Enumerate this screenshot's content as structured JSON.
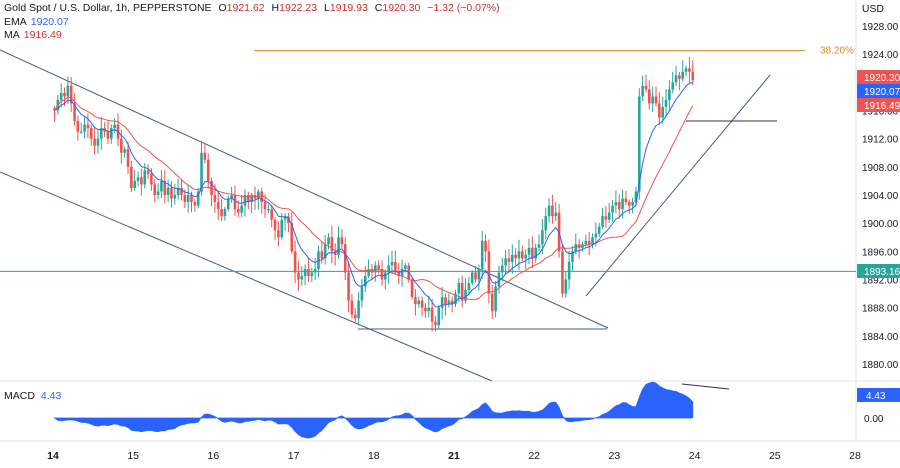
{
  "header": {
    "symbol": "Gold Spot / U.S. Dollar, 1h, PEPPERSTONE",
    "open_label": "O",
    "open": "1921.62",
    "high_label": "H",
    "high": "1922.23",
    "low_label": "L",
    "low": "1919.93",
    "close_label": "C",
    "close": "1920.30",
    "change": "−1.32 (−0.07%)",
    "ema_label": "EMA",
    "ema_value": "1920.07",
    "ma_label": "MA",
    "ma_value": "1916.49",
    "unit": "USD"
  },
  "macd": {
    "label": "MACD",
    "value": "4.43",
    "axis_badge": "4.43",
    "zero_label": "0.00"
  },
  "price_badges": [
    {
      "text": "1920.30",
      "color": "#ef5350"
    },
    {
      "text": "1920.07",
      "color": "#2962ff"
    },
    {
      "text": "1916.49",
      "color": "#ef5350"
    },
    {
      "text": "1893.16",
      "color": "#26a69a"
    }
  ],
  "fib_label": "38.20%",
  "colors": {
    "up": "#26a69a",
    "down": "#ef5350",
    "ema": "#2962ff",
    "ma": "#ef5350",
    "channel": "#4a5a8a",
    "fib": "#d58b2b",
    "macd": "#2962ff"
  },
  "chart_data": {
    "type": "candlestick",
    "y_ticks": [
      "1928.00",
      "1924.00",
      "1920.00",
      "1916.00",
      "1912.00",
      "1908.00",
      "1904.00",
      "1900.00",
      "1896.00",
      "1892.00",
      "1888.00",
      "1884.00",
      "1880.00"
    ],
    "ylim": [
      1878.5,
      1930.5
    ],
    "x_ticks": [
      {
        "label": "14",
        "x": 0
      },
      {
        "label": "15",
        "x": 1
      },
      {
        "label": "16",
        "x": 2
      },
      {
        "label": "17",
        "x": 3
      },
      {
        "label": "18",
        "x": 4
      },
      {
        "label": "21",
        "x": 5
      },
      {
        "label": "22",
        "x": 6
      },
      {
        "label": "23",
        "x": 7
      },
      {
        "label": "24",
        "x": 8
      },
      {
        "label": "25",
        "x": 9
      },
      {
        "label": "28",
        "x": 10
      }
    ],
    "x_bold": [
      "14",
      "21"
    ],
    "candles_per_day": 24,
    "close_path": [
      [
        0,
        1916
      ],
      [
        1,
        1917.5
      ],
      [
        2,
        1918.5
      ],
      [
        3,
        1918
      ],
      [
        4,
        1919.5
      ],
      [
        5,
        1917
      ],
      [
        6,
        1914.5
      ],
      [
        7,
        1913
      ],
      [
        8,
        1913
      ],
      [
        9,
        1914
      ],
      [
        10,
        1913.5
      ],
      [
        11,
        1912
      ],
      [
        12,
        1911
      ],
      [
        13,
        1912
      ],
      [
        14,
        1913.5
      ],
      [
        15,
        1913
      ],
      [
        16,
        1912
      ],
      [
        17,
        1913.5
      ],
      [
        18,
        1914
      ],
      [
        19,
        1912
      ],
      [
        20,
        1910
      ],
      [
        21,
        1910.5
      ],
      [
        22,
        1908
      ],
      [
        23,
        1905
      ],
      [
        24,
        1906
      ],
      [
        25,
        1906.5
      ],
      [
        26,
        1905.5
      ],
      [
        27,
        1907.5
      ],
      [
        28,
        1907
      ],
      [
        29,
        1905.5
      ],
      [
        30,
        1904
      ],
      [
        31,
        1904.5
      ],
      [
        32,
        1906
      ],
      [
        33,
        1904
      ],
      [
        34,
        1905
      ],
      [
        35,
        1903.5
      ],
      [
        36,
        1904
      ],
      [
        37,
        1905
      ],
      [
        38,
        1904
      ],
      [
        39,
        1903
      ],
      [
        40,
        1904
      ],
      [
        41,
        1903
      ],
      [
        42,
        1902.5
      ],
      [
        43,
        1904.5
      ],
      [
        44,
        1910
      ],
      [
        45,
        1909
      ],
      [
        46,
        1906
      ],
      [
        47,
        1904
      ],
      [
        48,
        1903
      ],
      [
        49,
        1902
      ],
      [
        50,
        1901
      ],
      [
        51,
        1902
      ],
      [
        52,
        1903.5
      ],
      [
        53,
        1904
      ],
      [
        54,
        1902
      ],
      [
        55,
        1901.5
      ],
      [
        56,
        1902.5
      ],
      [
        57,
        1904
      ],
      [
        58,
        1903
      ],
      [
        59,
        1904
      ],
      [
        60,
        1903.5
      ],
      [
        61,
        1904.5
      ],
      [
        62,
        1903
      ],
      [
        63,
        1902
      ],
      [
        64,
        1902
      ],
      [
        65,
        1900.5
      ],
      [
        66,
        1899
      ],
      [
        67,
        1898
      ],
      [
        68,
        1900.5
      ],
      [
        69,
        1901
      ],
      [
        70,
        1900
      ],
      [
        71,
        1896
      ],
      [
        72,
        1893
      ],
      [
        73,
        1892
      ],
      [
        74,
        1892.5
      ],
      [
        75,
        1893.5
      ],
      [
        76,
        1892.5
      ],
      [
        77,
        1893
      ],
      [
        78,
        1893.5
      ],
      [
        79,
        1896
      ],
      [
        80,
        1895
      ],
      [
        81,
        1897
      ],
      [
        82,
        1898
      ],
      [
        83,
        1896
      ],
      [
        84,
        1895.5
      ],
      [
        85,
        1898
      ],
      [
        86,
        1897
      ],
      [
        87,
        1893
      ],
      [
        88,
        1889
      ],
      [
        89,
        1887
      ],
      [
        90,
        1886.5
      ],
      [
        91,
        1889
      ],
      [
        92,
        1891
      ],
      [
        93,
        1892.5
      ],
      [
        94,
        1893.5
      ],
      [
        95,
        1893
      ],
      [
        96,
        1894
      ],
      [
        97,
        1893.5
      ],
      [
        98,
        1892
      ],
      [
        99,
        1893
      ],
      [
        100,
        1894
      ],
      [
        101,
        1894.5
      ],
      [
        102,
        1893
      ],
      [
        103,
        1892.5
      ],
      [
        104,
        1893.5
      ],
      [
        105,
        1894
      ],
      [
        106,
        1892
      ],
      [
        107,
        1889.5
      ],
      [
        108,
        1888.5
      ],
      [
        109,
        1889
      ],
      [
        110,
        1888
      ],
      [
        111,
        1887.5
      ],
      [
        112,
        1888
      ],
      [
        113,
        1886
      ],
      [
        114,
        1885.5
      ],
      [
        115,
        1888
      ],
      [
        116,
        1889.5
      ],
      [
        117,
        1888.5
      ],
      [
        118,
        1889
      ],
      [
        119,
        1888.5
      ],
      [
        120,
        1890
      ],
      [
        121,
        1891.5
      ],
      [
        122,
        1889
      ],
      [
        123,
        1890.5
      ],
      [
        124,
        1891.5
      ],
      [
        125,
        1893
      ],
      [
        126,
        1892
      ],
      [
        127,
        1893.5
      ],
      [
        128,
        1897.5
      ],
      [
        129,
        1896
      ],
      [
        130,
        1890
      ],
      [
        131,
        1887.5
      ],
      [
        132,
        1891
      ],
      [
        133,
        1893
      ],
      [
        134,
        1894
      ],
      [
        135,
        1895
      ],
      [
        136,
        1894.5
      ],
      [
        137,
        1895.5
      ],
      [
        138,
        1895
      ],
      [
        139,
        1896
      ],
      [
        140,
        1895
      ],
      [
        141,
        1895.5
      ],
      [
        142,
        1896.5
      ],
      [
        143,
        1895
      ],
      [
        144,
        1896.5
      ],
      [
        145,
        1897
      ],
      [
        146,
        1899
      ],
      [
        147,
        1901
      ],
      [
        148,
        1902.5
      ],
      [
        149,
        1901
      ],
      [
        150,
        1901.5
      ],
      [
        151,
        1896
      ],
      [
        152,
        1890
      ],
      [
        153,
        1892
      ],
      [
        154,
        1894.5
      ],
      [
        155,
        1896
      ],
      [
        156,
        1897
      ],
      [
        157,
        1896.5
      ],
      [
        158,
        1897
      ],
      [
        159,
        1897.5
      ],
      [
        160,
        1897
      ],
      [
        161,
        1898
      ],
      [
        162,
        1898.5
      ],
      [
        163,
        1899.5
      ],
      [
        164,
        1901
      ],
      [
        165,
        1900.5
      ],
      [
        166,
        1901.5
      ],
      [
        167,
        1902.5
      ],
      [
        168,
        1903
      ],
      [
        169,
        1902
      ],
      [
        170,
        1903.5
      ],
      [
        171,
        1903
      ],
      [
        172,
        1902.5
      ],
      [
        173,
        1903
      ],
      [
        174,
        1904.5
      ],
      [
        175,
        1918
      ],
      [
        176,
        1919.5
      ],
      [
        177,
        1919
      ],
      [
        178,
        1917
      ],
      [
        179,
        1918
      ],
      [
        180,
        1917
      ],
      [
        181,
        1915
      ],
      [
        182,
        1916.5
      ],
      [
        183,
        1917.5
      ],
      [
        184,
        1919
      ],
      [
        185,
        1920
      ],
      [
        186,
        1921
      ],
      [
        187,
        1920.5
      ],
      [
        188,
        1921.5
      ],
      [
        189,
        1922
      ],
      [
        190,
        1921.5
      ],
      [
        191,
        1920.3
      ]
    ],
    "series": [
      {
        "name": "EMA",
        "value": 1920.07
      },
      {
        "name": "MA",
        "value": 1916.49
      },
      {
        "name": "MACD",
        "value": 4.43
      }
    ],
    "annotations": [
      {
        "type": "hline",
        "label": "38.20%",
        "y": 1924.5
      },
      {
        "type": "hline",
        "y": 1893.16
      },
      {
        "type": "hline",
        "y": 1885.5
      },
      {
        "type": "hline",
        "y": 1914.2
      }
    ],
    "grid": false
  }
}
